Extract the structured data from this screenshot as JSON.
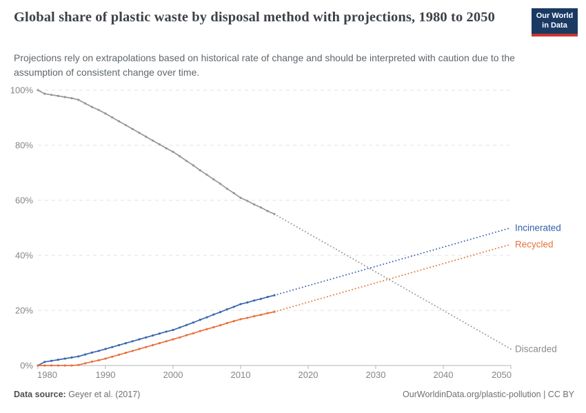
{
  "header": {
    "title": "Global share of plastic waste by disposal method with projections, 1980 to 2050",
    "subtitle": "Projections rely on extrapolations based on historical rate of change and should be interpreted with caution due to the assumption of consistent change over time.",
    "logo": {
      "line1": "Our World",
      "line2": "in Data",
      "bg_color": "#1a3a64",
      "accent_color": "#d0342c"
    }
  },
  "footer": {
    "source_label": "Data source:",
    "source_value": " Geyer et al. (2017)",
    "link": "OurWorldinData.org/plastic-pollution | CC BY"
  },
  "chart_data": {
    "type": "line",
    "title": "Global share of plastic waste by disposal method with projections, 1980 to 2050",
    "xlabel": "",
    "ylabel": "",
    "xlim": [
      1980,
      2050
    ],
    "ylim": [
      0,
      100
    ],
    "grid": "horizontal-dashed",
    "legend_position": "end-of-line-labels",
    "projection_split_year": 2015,
    "x_ticks": [
      1980,
      1990,
      2000,
      2010,
      2020,
      2030,
      2040,
      2050
    ],
    "y_ticks": [
      0,
      20,
      40,
      60,
      80,
      100
    ],
    "y_tick_labels": [
      "0%",
      "20%",
      "40%",
      "60%",
      "80%",
      "100%"
    ],
    "axis_color": "#b3b3b3",
    "grid_color": "#e2e2e2",
    "tick_label_color": "#858585",
    "historical_years": [
      1980,
      1981,
      1982,
      1983,
      1984,
      1985,
      1986,
      1987,
      1988,
      1989,
      1990,
      1991,
      1992,
      1993,
      1994,
      1995,
      1996,
      1997,
      1998,
      1999,
      2000,
      2001,
      2002,
      2003,
      2004,
      2005,
      2006,
      2007,
      2008,
      2009,
      2010,
      2011,
      2012,
      2013,
      2014,
      2015
    ],
    "projection_years": [
      2015,
      2020,
      2025,
      2030,
      2035,
      2040,
      2045,
      2050
    ],
    "series": [
      {
        "name": "Discarded",
        "color": "#969696",
        "label_color": "#8c8c8c",
        "historical_values": [
          100,
          98.7,
          98.3,
          97.9,
          97.5,
          97.1,
          96.5,
          95.2,
          93.9,
          92.8,
          91.5,
          90.1,
          88.7,
          87.3,
          85.9,
          84.5,
          83.1,
          81.7,
          80.3,
          78.9,
          77.6,
          76.0,
          74.3,
          72.7,
          70.9,
          69.3,
          67.6,
          66.0,
          64.2,
          62.6,
          60.9,
          59.8,
          58.5,
          57.4,
          56.1,
          55.0
        ],
        "projection_values": [
          55.0,
          48.0,
          41.0,
          34.0,
          27.0,
          20.0,
          13.0,
          6.0
        ]
      },
      {
        "name": "Incinerated",
        "color": "#3a66ad",
        "label_color": "#3360a9",
        "historical_values": [
          0,
          1.3,
          1.7,
          2.1,
          2.5,
          2.9,
          3.3,
          4.0,
          4.7,
          5.3,
          6.0,
          6.7,
          7.4,
          8.1,
          8.8,
          9.5,
          10.2,
          10.9,
          11.6,
          12.3,
          12.9,
          13.8,
          14.7,
          15.6,
          16.6,
          17.5,
          18.5,
          19.4,
          20.4,
          21.3,
          22.3,
          22.9,
          23.6,
          24.2,
          24.9,
          25.5
        ],
        "projection_values": [
          25.5,
          29.0,
          32.5,
          36.0,
          39.5,
          43.0,
          46.5,
          50.0
        ]
      },
      {
        "name": "Recycled",
        "color": "#e8703a",
        "label_color": "#e8703a",
        "historical_values": [
          0,
          0,
          0,
          0,
          0,
          0,
          0.2,
          0.8,
          1.4,
          1.9,
          2.5,
          3.2,
          3.9,
          4.6,
          5.3,
          6.0,
          6.7,
          7.4,
          8.1,
          8.8,
          9.5,
          10.2,
          11.0,
          11.7,
          12.5,
          13.2,
          13.9,
          14.6,
          15.4,
          16.1,
          16.8,
          17.3,
          17.9,
          18.4,
          19.0,
          19.5
        ],
        "projection_values": [
          19.5,
          23.0,
          26.5,
          30.0,
          33.5,
          37.0,
          40.5,
          44.0
        ]
      }
    ]
  }
}
